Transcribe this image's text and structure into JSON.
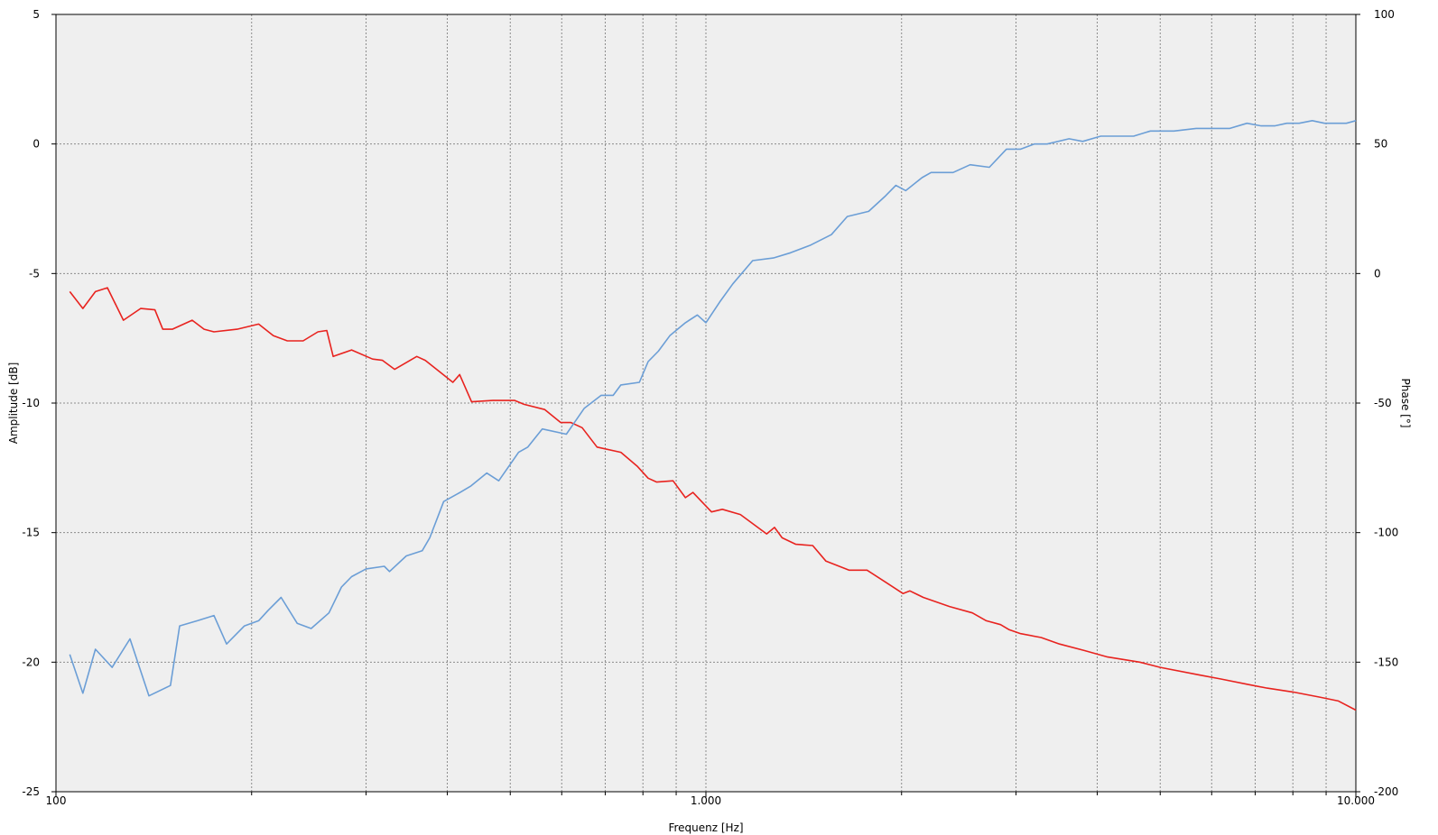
{
  "chart_data": {
    "type": "line",
    "xlabel": "Frequenz [Hz]",
    "ylabel": "Amplitude [dB]",
    "y2label": "Phase [°]",
    "xscale": "log",
    "xlim": [
      100,
      10000
    ],
    "ylim": [
      -25,
      5
    ],
    "y2lim": [
      -200,
      100
    ],
    "grid": true,
    "x_tick_labels": [
      {
        "value": 100,
        "label": "100"
      },
      {
        "value": 1000,
        "label": "1.000"
      },
      {
        "value": 10000,
        "label": "10.000"
      }
    ],
    "y_ticks": [
      5,
      0,
      -5,
      -10,
      -15,
      -20,
      -25
    ],
    "y2_ticks": [
      100,
      50,
      0,
      -50,
      -100,
      -150,
      -200
    ],
    "colors": {
      "amplitude": "#e8231f",
      "phase": "#6b9ed6",
      "plot_bg": "#efefef",
      "grid": "#8c8c8c"
    },
    "series": [
      {
        "axis": "left",
        "color": "#e8231f",
        "points": [
          [
            105,
            -5.7
          ],
          [
            110,
            -6.35
          ],
          [
            115,
            -5.7
          ],
          [
            120,
            -5.55
          ],
          [
            127,
            -6.8
          ],
          [
            135,
            -6.35
          ],
          [
            142,
            -6.4
          ],
          [
            146,
            -7.15
          ],
          [
            151,
            -7.15
          ],
          [
            162,
            -6.8
          ],
          [
            169,
            -7.15
          ],
          [
            175,
            -7.25
          ],
          [
            190,
            -7.15
          ],
          [
            205,
            -6.95
          ],
          [
            216,
            -7.4
          ],
          [
            227,
            -7.6
          ],
          [
            240,
            -7.6
          ],
          [
            253,
            -7.25
          ],
          [
            261,
            -7.2
          ],
          [
            267,
            -8.2
          ],
          [
            285,
            -7.95
          ],
          [
            307,
            -8.3
          ],
          [
            318,
            -8.35
          ],
          [
            332,
            -8.7
          ],
          [
            359,
            -8.2
          ],
          [
            370,
            -8.35
          ],
          [
            392,
            -8.85
          ],
          [
            408,
            -9.2
          ],
          [
            418,
            -8.9
          ],
          [
            436,
            -9.95
          ],
          [
            470,
            -9.9
          ],
          [
            508,
            -9.9
          ],
          [
            525,
            -10.05
          ],
          [
            565,
            -10.25
          ],
          [
            598,
            -10.75
          ],
          [
            620,
            -10.75
          ],
          [
            645,
            -10.95
          ],
          [
            680,
            -11.7
          ],
          [
            740,
            -11.9
          ],
          [
            785,
            -12.45
          ],
          [
            815,
            -12.9
          ],
          [
            840,
            -13.05
          ],
          [
            890,
            -13.0
          ],
          [
            930,
            -13.65
          ],
          [
            955,
            -13.45
          ],
          [
            1020,
            -14.2
          ],
          [
            1060,
            -14.1
          ],
          [
            1130,
            -14.3
          ],
          [
            1240,
            -15.05
          ],
          [
            1275,
            -14.8
          ],
          [
            1310,
            -15.2
          ],
          [
            1375,
            -15.45
          ],
          [
            1460,
            -15.5
          ],
          [
            1530,
            -16.1
          ],
          [
            1660,
            -16.45
          ],
          [
            1770,
            -16.45
          ],
          [
            1900,
            -16.95
          ],
          [
            2010,
            -17.35
          ],
          [
            2060,
            -17.25
          ],
          [
            2160,
            -17.5
          ],
          [
            2370,
            -17.85
          ],
          [
            2570,
            -18.1
          ],
          [
            2700,
            -18.4
          ],
          [
            2840,
            -18.55
          ],
          [
            2930,
            -18.75
          ],
          [
            3050,
            -18.9
          ],
          [
            3280,
            -19.05
          ],
          [
            3500,
            -19.3
          ],
          [
            3820,
            -19.55
          ],
          [
            4150,
            -19.8
          ],
          [
            4650,
            -20.0
          ],
          [
            5000,
            -20.2
          ],
          [
            5760,
            -20.5
          ],
          [
            6200,
            -20.65
          ],
          [
            6800,
            -20.85
          ],
          [
            7300,
            -21.0
          ],
          [
            8000,
            -21.15
          ],
          [
            8800,
            -21.35
          ],
          [
            9400,
            -21.5
          ],
          [
            10000,
            -21.85
          ]
        ]
      },
      {
        "axis": "right",
        "color": "#6b9ed6",
        "points": [
          [
            105,
            -147
          ],
          [
            110,
            -162
          ],
          [
            115,
            -145
          ],
          [
            122,
            -152
          ],
          [
            130,
            -141
          ],
          [
            139,
            -163
          ],
          [
            150,
            -159
          ],
          [
            155,
            -136
          ],
          [
            165,
            -134
          ],
          [
            175,
            -132
          ],
          [
            183,
            -143
          ],
          [
            195,
            -136
          ],
          [
            205,
            -134
          ],
          [
            212,
            -130
          ],
          [
            222,
            -125
          ],
          [
            235,
            -135
          ],
          [
            247,
            -137
          ],
          [
            263,
            -131
          ],
          [
            275,
            -121
          ],
          [
            285,
            -117
          ],
          [
            300,
            -114
          ],
          [
            320,
            -113
          ],
          [
            326,
            -115
          ],
          [
            346,
            -109
          ],
          [
            366,
            -107
          ],
          [
            376,
            -102
          ],
          [
            395,
            -88
          ],
          [
            415,
            -85
          ],
          [
            435,
            -82
          ],
          [
            460,
            -77
          ],
          [
            480,
            -80
          ],
          [
            515,
            -69
          ],
          [
            532,
            -67
          ],
          [
            560,
            -60
          ],
          [
            610,
            -62
          ],
          [
            650,
            -52
          ],
          [
            690,
            -47
          ],
          [
            720,
            -47
          ],
          [
            740,
            -43
          ],
          [
            790,
            -42
          ],
          [
            815,
            -34
          ],
          [
            845,
            -30
          ],
          [
            880,
            -24
          ],
          [
            930,
            -19
          ],
          [
            970,
            -16
          ],
          [
            1000,
            -19
          ],
          [
            1050,
            -11
          ],
          [
            1100,
            -4
          ],
          [
            1180,
            5
          ],
          [
            1270,
            6
          ],
          [
            1350,
            8
          ],
          [
            1450,
            11
          ],
          [
            1560,
            15
          ],
          [
            1650,
            22
          ],
          [
            1780,
            24
          ],
          [
            1890,
            30
          ],
          [
            1960,
            34
          ],
          [
            2030,
            32
          ],
          [
            2150,
            37
          ],
          [
            2220,
            39
          ],
          [
            2400,
            39
          ],
          [
            2550,
            42
          ],
          [
            2730,
            41
          ],
          [
            2900,
            48
          ],
          [
            3050,
            48
          ],
          [
            3200,
            50
          ],
          [
            3350,
            50
          ],
          [
            3620,
            52
          ],
          [
            3800,
            51
          ],
          [
            4050,
            53
          ],
          [
            4330,
            53
          ],
          [
            4550,
            53
          ],
          [
            4830,
            55
          ],
          [
            5250,
            55
          ],
          [
            5680,
            56
          ],
          [
            6050,
            56
          ],
          [
            6400,
            56
          ],
          [
            6800,
            58
          ],
          [
            7150,
            57
          ],
          [
            7500,
            57
          ],
          [
            7830,
            58
          ],
          [
            8180,
            58
          ],
          [
            8570,
            59
          ],
          [
            8950,
            58
          ],
          [
            9320,
            58
          ],
          [
            9670,
            58
          ],
          [
            10000,
            59
          ]
        ]
      }
    ]
  }
}
